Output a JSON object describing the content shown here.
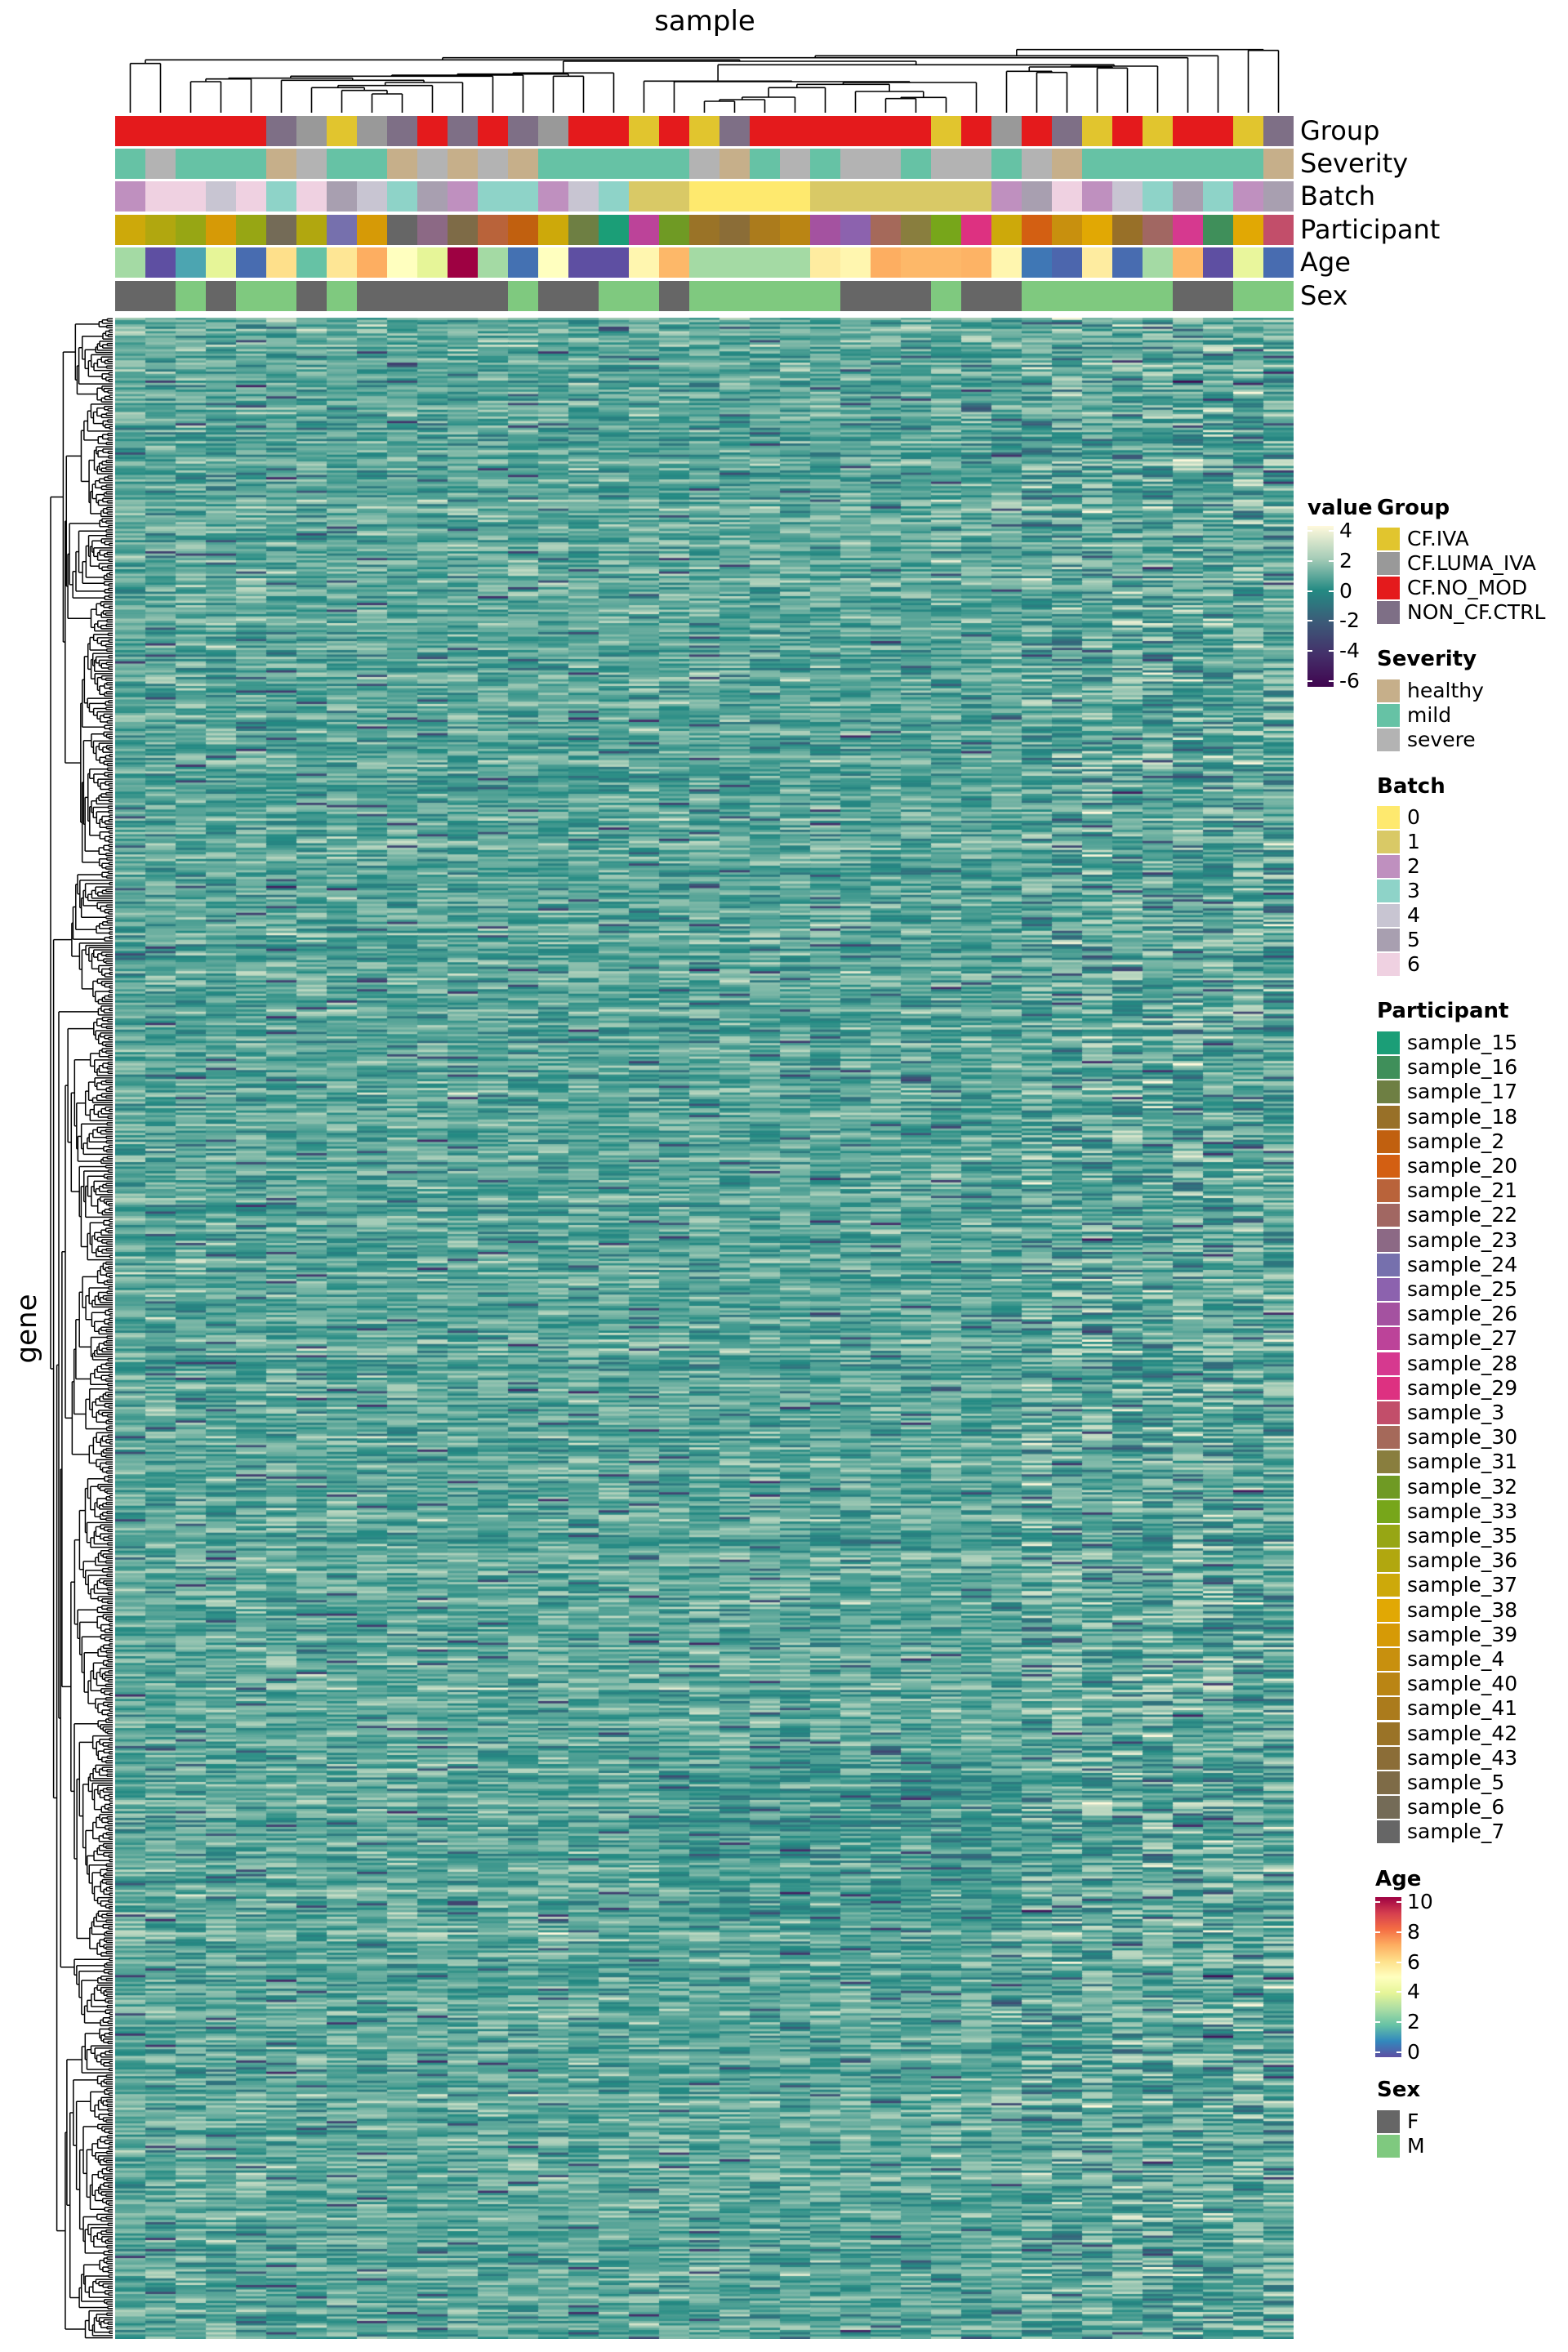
{
  "chart_data": {
    "type": "heatmap",
    "title": "sample",
    "xlabel": "sample",
    "ylabel": "gene",
    "value_legend": {
      "title": "value",
      "ticks": [
        "4",
        "2",
        "0",
        "-2",
        "-4",
        "-6"
      ],
      "range": [
        -6,
        4
      ],
      "colors": [
        "#FFF9DC",
        "#A7CDB8",
        "#248A83",
        "#3C5A78",
        "#44306A",
        "#40054F"
      ]
    },
    "row_dendrogram": true,
    "column_dendrogram": true,
    "annotations": {
      "labels": [
        "Group",
        "Severity",
        "Batch",
        "Participant",
        "Age",
        "Sex"
      ],
      "Group": [
        "CF.NO_MOD",
        "CF.NO_MOD",
        "CF.NO_MOD",
        "CF.NO_MOD",
        "CF.NO_MOD",
        "NON_CF.CTRL",
        "CF.LUMA_IVA",
        "CF.IVA",
        "CF.LUMA_IVA",
        "NON_CF.CTRL",
        "CF.NO_MOD",
        "NON_CF.CTRL",
        "CF.NO_MOD",
        "NON_CF.CTRL",
        "CF.LUMA_IVA",
        "CF.NO_MOD",
        "CF.NO_MOD",
        "CF.IVA",
        "CF.NO_MOD",
        "CF.IVA",
        "NON_CF.CTRL",
        "CF.NO_MOD",
        "CF.NO_MOD",
        "CF.NO_MOD",
        "CF.NO_MOD",
        "CF.NO_MOD",
        "CF.NO_MOD",
        "CF.IVA",
        "CF.NO_MOD",
        "CF.LUMA_IVA",
        "CF.NO_MOD",
        "NON_CF.CTRL",
        "CF.IVA",
        "CF.NO_MOD",
        "CF.IVA",
        "CF.NO_MOD",
        "CF.NO_MOD",
        "CF.IVA",
        "NON_CF.CTRL"
      ],
      "Severity": [
        "mild",
        "severe",
        "mild",
        "mild",
        "mild",
        "healthy",
        "severe",
        "mild",
        "mild",
        "healthy",
        "severe",
        "healthy",
        "severe",
        "healthy",
        "mild",
        "mild",
        "mild",
        "mild",
        "mild",
        "severe",
        "healthy",
        "mild",
        "severe",
        "mild",
        "severe",
        "severe",
        "mild",
        "severe",
        "severe",
        "mild",
        "severe",
        "healthy",
        "mild",
        "mild",
        "mild",
        "mild",
        "mild",
        "mild",
        "healthy"
      ],
      "Batch": [
        "2",
        "6",
        "6",
        "4",
        "6",
        "3",
        "6",
        "5",
        "4",
        "3",
        "5",
        "2",
        "3",
        "3",
        "2",
        "4",
        "3",
        "1",
        "1",
        "0",
        "0",
        "0",
        "0",
        "1",
        "1",
        "1",
        "1",
        "1",
        "1",
        "2",
        "5",
        "6",
        "2",
        "4",
        "3",
        "5",
        "3",
        "2",
        "5"
      ],
      "Participant": [
        "sample_37",
        "sample_36",
        "sample_35",
        "sample_39",
        "sample_35",
        "sample_6",
        "sample_36",
        "sample_24",
        "sample_39",
        "sample_7",
        "sample_23",
        "sample_5",
        "sample_21",
        "sample_2",
        "sample_37",
        "sample_17",
        "sample_15",
        "sample_27",
        "sample_32",
        "sample_42",
        "sample_43",
        "sample_41",
        "sample_40",
        "sample_26",
        "sample_25",
        "sample_30",
        "sample_31",
        "sample_33",
        "sample_29",
        "sample_37",
        "sample_20",
        "sample_4",
        "sample_38",
        "sample_18",
        "sample_22",
        "sample_28",
        "sample_16",
        "sample_38",
        "sample_3"
      ],
      "Age": [
        2.9,
        0,
        1.5,
        4,
        0.5,
        6,
        2,
        5.8,
        7,
        5,
        4,
        10,
        2.9,
        0.6,
        5,
        0,
        0,
        5.3,
        6.8,
        2.9,
        2.9,
        2.9,
        2.9,
        5.6,
        5.3,
        7,
        6.8,
        6.8,
        6.9,
        5.3,
        0.7,
        0.4,
        5.6,
        0.5,
        2.9,
        6.8,
        0,
        4.1,
        0.5
      ],
      "Sex": [
        "F",
        "F",
        "M",
        "F",
        "M",
        "M",
        "F",
        "M",
        "F",
        "F",
        "F",
        "F",
        "F",
        "M",
        "F",
        "F",
        "M",
        "M",
        "F",
        "M",
        "M",
        "M",
        "M",
        "M",
        "F",
        "F",
        "F",
        "M",
        "F",
        "F",
        "M",
        "M",
        "M",
        "M",
        "M",
        "F",
        "F",
        "M",
        "M"
      ]
    }
  },
  "legends": {
    "Group": {
      "title": "Group",
      "items": [
        {
          "label": "CF.IVA",
          "color": "#E1C52E"
        },
        {
          "label": "CF.LUMA_IVA",
          "color": "#999999"
        },
        {
          "label": "CF.NO_MOD",
          "color": "#E41A1C"
        },
        {
          "label": "NON_CF.CTRL",
          "color": "#7E6F86"
        }
      ]
    },
    "Severity": {
      "title": "Severity",
      "items": [
        {
          "label": "healthy",
          "color": "#C6AF8A"
        },
        {
          "label": "mild",
          "color": "#66C2A5"
        },
        {
          "label": "severe",
          "color": "#B3B3B3"
        }
      ]
    },
    "Batch": {
      "title": "Batch",
      "items": [
        {
          "label": "0",
          "color": "#FEE96E"
        },
        {
          "label": "1",
          "color": "#D9C966"
        },
        {
          "label": "2",
          "color": "#BF90BF"
        },
        {
          "label": "3",
          "color": "#8ED3C8"
        },
        {
          "label": "4",
          "color": "#C8C5D2"
        },
        {
          "label": "5",
          "color": "#A89FB0"
        },
        {
          "label": "6",
          "color": "#EFD1E1"
        }
      ]
    },
    "Participant": {
      "title": "Participant",
      "items": [
        {
          "label": "sample_15",
          "color": "#1B9E77"
        },
        {
          "label": "sample_16",
          "color": "#3F8F5A"
        },
        {
          "label": "sample_17",
          "color": "#6E7F43"
        },
        {
          "label": "sample_18",
          "color": "#987028"
        },
        {
          "label": "sample_2",
          "color": "#C1600F"
        },
        {
          "label": "sample_20",
          "color": "#D35F12"
        },
        {
          "label": "sample_21",
          "color": "#B9633A"
        },
        {
          "label": "sample_22",
          "color": "#A16762"
        },
        {
          "label": "sample_23",
          "color": "#8C6985"
        },
        {
          "label": "sample_24",
          "color": "#7670AD"
        },
        {
          "label": "sample_25",
          "color": "#8C62AE"
        },
        {
          "label": "sample_26",
          "color": "#A452A0"
        },
        {
          "label": "sample_27",
          "color": "#BC4399"
        },
        {
          "label": "sample_28",
          "color": "#D6398F"
        },
        {
          "label": "sample_29",
          "color": "#DD3181"
        },
        {
          "label": "sample_3",
          "color": "#C24E6A"
        },
        {
          "label": "sample_30",
          "color": "#A5695A"
        },
        {
          "label": "sample_31",
          "color": "#897E3E"
        },
        {
          "label": "sample_32",
          "color": "#6F9A24"
        },
        {
          "label": "sample_33",
          "color": "#77A61A"
        },
        {
          "label": "sample_35",
          "color": "#97A614"
        },
        {
          "label": "sample_36",
          "color": "#B1A70F"
        },
        {
          "label": "sample_37",
          "color": "#CDA90A"
        },
        {
          "label": "sample_38",
          "color": "#E1A804"
        },
        {
          "label": "sample_39",
          "color": "#D69A06"
        },
        {
          "label": "sample_4",
          "color": "#C8900E"
        },
        {
          "label": "sample_40",
          "color": "#BA8514"
        },
        {
          "label": "sample_41",
          "color": "#AB7B1C"
        },
        {
          "label": "sample_42",
          "color": "#9A7327"
        },
        {
          "label": "sample_43",
          "color": "#8B6D37"
        },
        {
          "label": "sample_5",
          "color": "#7E6B47"
        },
        {
          "label": "sample_6",
          "color": "#746B57"
        },
        {
          "label": "sample_7",
          "color": "#666666"
        }
      ]
    },
    "Age": {
      "title": "Age",
      "ticks": [
        "10",
        "8",
        "6",
        "4",
        "2",
        "0"
      ],
      "range": [
        0,
        10
      ],
      "colors": [
        "#5E4FA2",
        "#3288BD",
        "#66C2A5",
        "#ABDDA4",
        "#E6F598",
        "#FFFFBF",
        "#FEE08B",
        "#FDAE61",
        "#F46D43",
        "#D53E4F",
        "#9E0142"
      ]
    },
    "Sex": {
      "title": "Sex",
      "items": [
        {
          "label": "F",
          "color": "#666666"
        },
        {
          "label": "M",
          "color": "#7FC97F"
        }
      ]
    }
  }
}
